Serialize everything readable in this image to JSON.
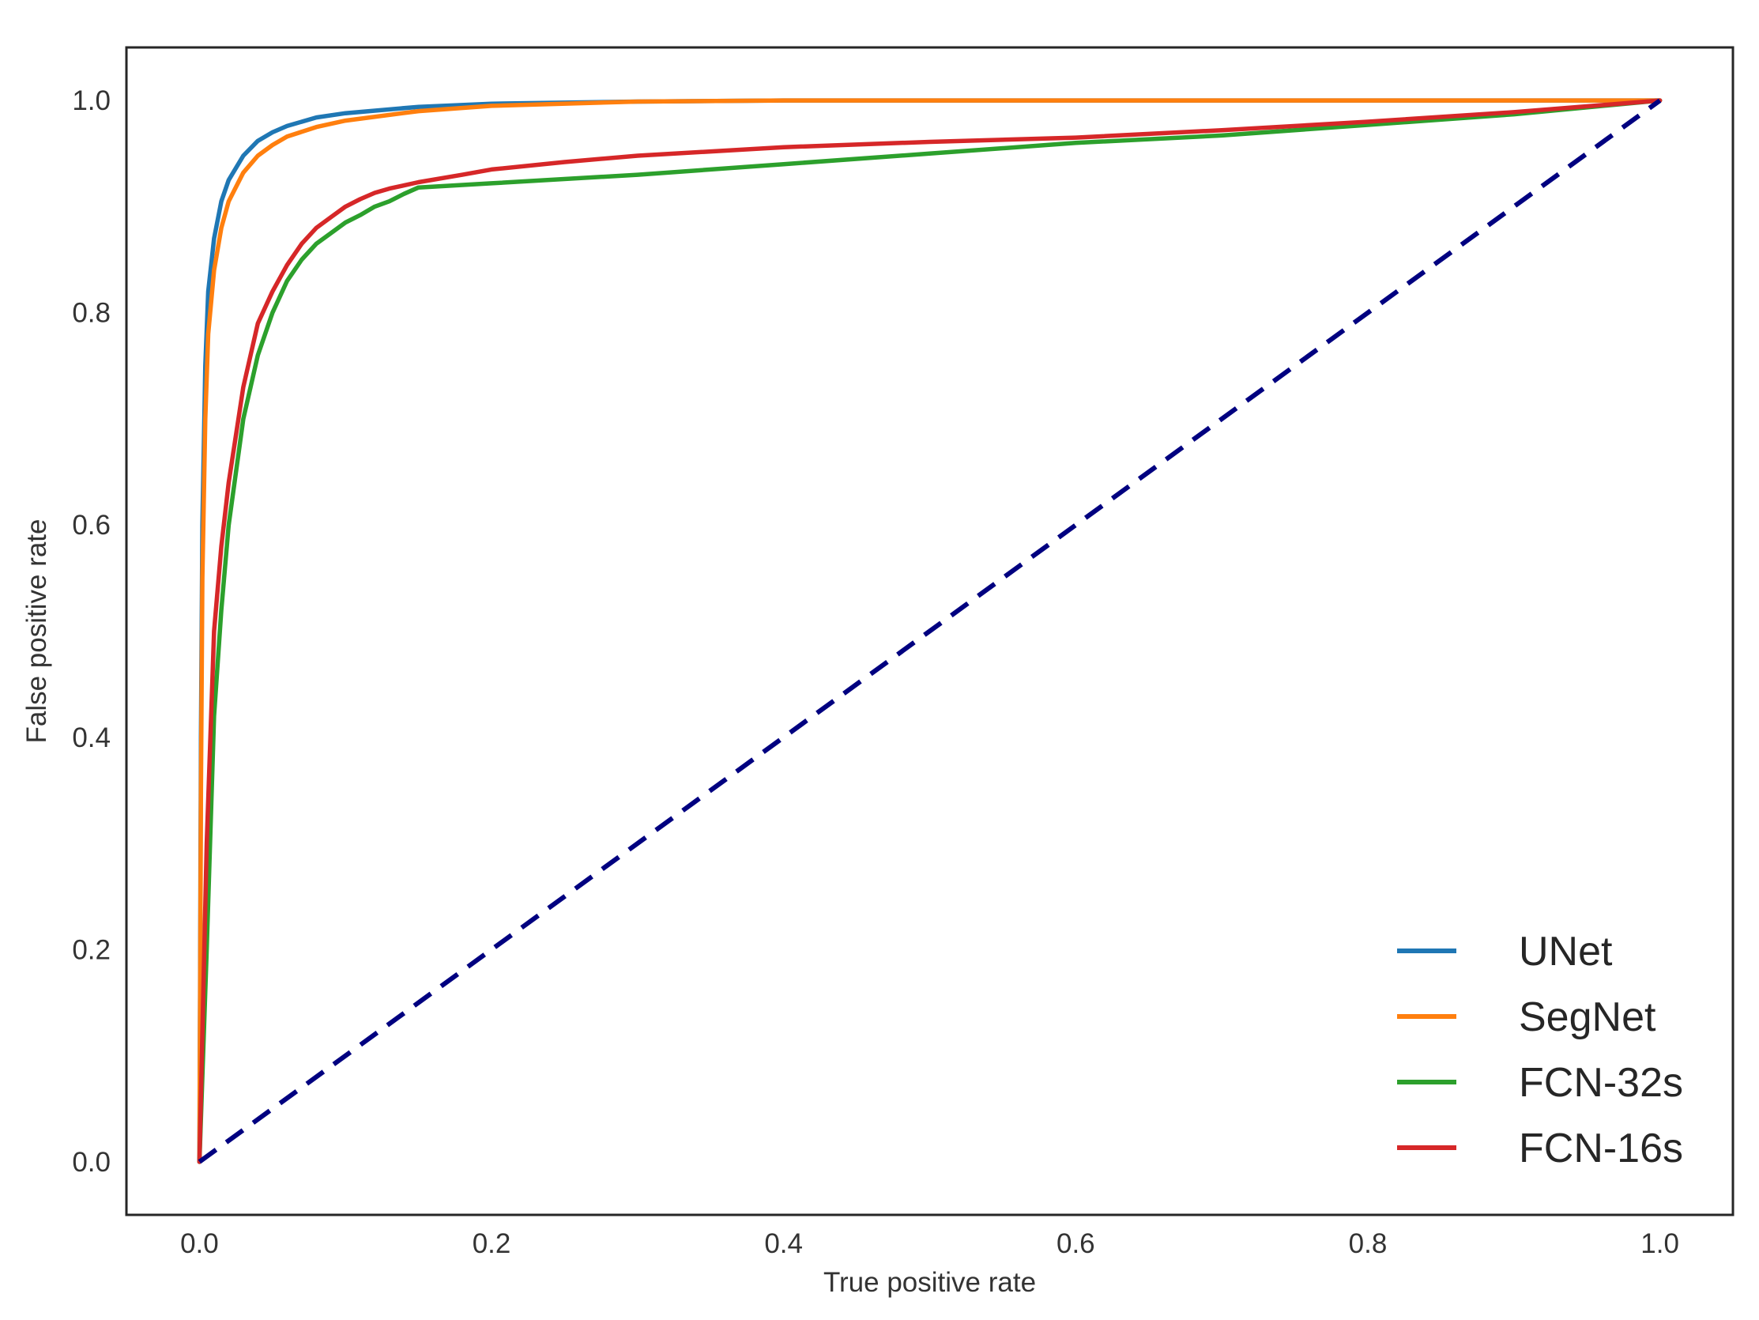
{
  "chart_data": {
    "type": "line",
    "xlabel": "True positive rate",
    "ylabel": "False positive rate",
    "xlim": [
      -0.05,
      1.05
    ],
    "ylim": [
      -0.05,
      1.05
    ],
    "xticks": [
      0.0,
      0.2,
      0.4,
      0.6,
      0.8,
      1.0
    ],
    "yticks": [
      0.0,
      0.2,
      0.4,
      0.6,
      0.8,
      1.0
    ],
    "xtick_labels": [
      "0.0",
      "0.2",
      "0.4",
      "0.6",
      "0.8",
      "1.0"
    ],
    "ytick_labels": [
      "0.0",
      "0.2",
      "0.4",
      "0.6",
      "0.8",
      "1.0"
    ],
    "grid": false,
    "legend_position": "bottom-right",
    "series": [
      {
        "name": "UNet",
        "color": "#1f77b4",
        "x": [
          0.0,
          0.001,
          0.002,
          0.004,
          0.006,
          0.01,
          0.015,
          0.02,
          0.03,
          0.04,
          0.05,
          0.06,
          0.08,
          0.1,
          0.15,
          0.2,
          0.3,
          0.4,
          0.6,
          0.8,
          1.0
        ],
        "y": [
          0.0,
          0.4,
          0.6,
          0.75,
          0.82,
          0.87,
          0.905,
          0.925,
          0.948,
          0.962,
          0.97,
          0.976,
          0.984,
          0.988,
          0.994,
          0.997,
          0.999,
          1.0,
          1.0,
          1.0,
          1.0
        ]
      },
      {
        "name": "SegNet",
        "color": "#ff7f0e",
        "x": [
          0.0,
          0.001,
          0.002,
          0.004,
          0.006,
          0.01,
          0.015,
          0.02,
          0.03,
          0.04,
          0.05,
          0.06,
          0.08,
          0.1,
          0.15,
          0.2,
          0.3,
          0.4,
          0.6,
          0.8,
          1.0
        ],
        "y": [
          0.0,
          0.35,
          0.55,
          0.7,
          0.78,
          0.84,
          0.88,
          0.905,
          0.932,
          0.948,
          0.958,
          0.966,
          0.975,
          0.981,
          0.99,
          0.995,
          0.999,
          1.0,
          1.0,
          1.0,
          1.0
        ]
      },
      {
        "name": "FCN-32s",
        "color": "#2ca02c",
        "x": [
          0.0,
          0.005,
          0.01,
          0.015,
          0.02,
          0.03,
          0.04,
          0.05,
          0.06,
          0.07,
          0.08,
          0.09,
          0.1,
          0.11,
          0.12,
          0.13,
          0.14,
          0.15,
          0.2,
          0.3,
          0.4,
          0.5,
          0.6,
          0.7,
          0.8,
          0.9,
          1.0
        ],
        "y": [
          0.0,
          0.2,
          0.42,
          0.52,
          0.6,
          0.7,
          0.76,
          0.8,
          0.83,
          0.85,
          0.865,
          0.875,
          0.885,
          0.892,
          0.9,
          0.905,
          0.912,
          0.918,
          0.922,
          0.93,
          0.94,
          0.95,
          0.96,
          0.967,
          0.977,
          0.987,
          1.0
        ]
      },
      {
        "name": "FCN-16s",
        "color": "#d62728",
        "x": [
          0.0,
          0.005,
          0.01,
          0.015,
          0.02,
          0.03,
          0.04,
          0.05,
          0.06,
          0.07,
          0.08,
          0.09,
          0.1,
          0.11,
          0.12,
          0.13,
          0.14,
          0.15,
          0.18,
          0.2,
          0.25,
          0.3,
          0.4,
          0.5,
          0.6,
          0.7,
          0.8,
          0.9,
          1.0
        ],
        "y": [
          0.0,
          0.3,
          0.5,
          0.58,
          0.64,
          0.73,
          0.79,
          0.82,
          0.845,
          0.865,
          0.88,
          0.89,
          0.9,
          0.907,
          0.913,
          0.917,
          0.92,
          0.923,
          0.93,
          0.935,
          0.942,
          0.948,
          0.956,
          0.961,
          0.965,
          0.972,
          0.98,
          0.989,
          1.0
        ]
      }
    ],
    "reference_line": {
      "x": [
        0.0,
        1.0
      ],
      "y": [
        0.0,
        1.0
      ],
      "color": "#000080",
      "style": "dashed"
    }
  }
}
